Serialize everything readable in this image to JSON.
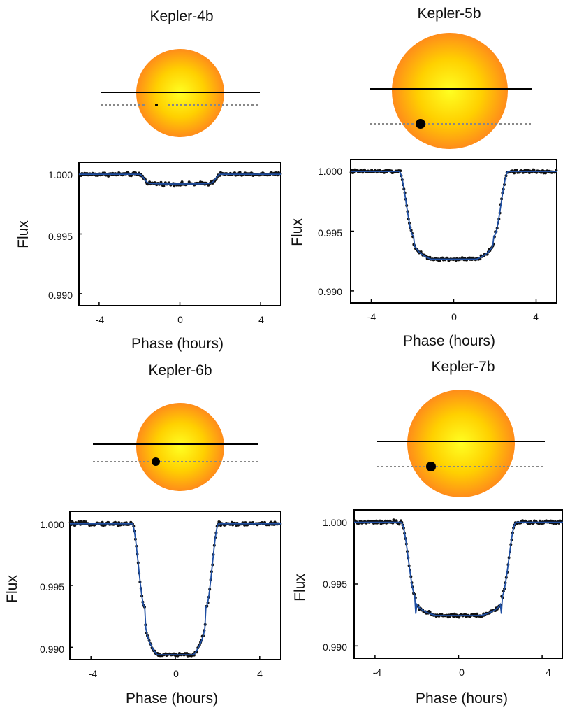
{
  "figure": {
    "colors": {
      "star_center": "#ffff22",
      "star_mid": "#ffcc00",
      "star_edge": "#ff8c1a",
      "model_line": "#1f4fa3",
      "points": "#111111",
      "path_dotted": "#888888"
    }
  },
  "chart_data": [
    {
      "type": "scatter",
      "title": "Kepler-4b",
      "xlabel": "Phase (hours)",
      "ylabel": "Flux",
      "xlim": [
        -5,
        5
      ],
      "ylim": [
        0.989,
        1.001
      ],
      "xticks": [
        -4,
        0,
        4
      ],
      "xtick_labels": [
        "-4",
        "0",
        "4"
      ],
      "yticks": [
        1.0,
        0.995,
        0.99
      ],
      "ytick_labels": [
        "1.000",
        "0.995",
        "0.990"
      ],
      "transit": {
        "depth": 0.0008,
        "t1": 2.0,
        "t2": 1.55,
        "limb_darkening": 0.1
      },
      "series": [
        {
          "kind": "points",
          "scatter": 0.0001
        },
        {
          "kind": "model"
        }
      ],
      "star_diagram": {
        "relative_star_radius": 0.8,
        "relative_planet_radius": 0.02,
        "planet_offset_x": -0.5
      }
    },
    {
      "type": "scatter",
      "title": "Kepler-5b",
      "xlabel": "Phase (hours)",
      "ylabel": "Flux",
      "xlim": [
        -5,
        5
      ],
      "ylim": [
        0.989,
        1.001
      ],
      "xticks": [
        -4,
        0,
        4
      ],
      "xtick_labels": [
        "-4",
        "0",
        "4"
      ],
      "yticks": [
        1.0,
        0.995,
        0.99
      ],
      "ytick_labels": [
        "1.000",
        "0.995",
        "0.990"
      ],
      "transit": {
        "depth": 0.0072,
        "t1": 2.65,
        "t2": 1.95,
        "limb_darkening": 0.25
      },
      "series": [
        {
          "kind": "points",
          "scatter": 0.0001
        },
        {
          "kind": "model"
        }
      ],
      "star_diagram": {
        "relative_star_radius": 1.0,
        "relative_planet_radius": 0.09,
        "planet_offset_x": -0.55
      }
    },
    {
      "type": "scatter",
      "title": "Kepler-6b",
      "xlabel": "Phase (hours)",
      "ylabel": "Flux",
      "xlim": [
        -5,
        5
      ],
      "ylim": [
        0.989,
        1.001
      ],
      "xticks": [
        -4,
        0,
        4
      ],
      "xtick_labels": [
        "-4",
        "0",
        "4"
      ],
      "yticks": [
        1.0,
        0.995,
        0.99
      ],
      "ytick_labels": [
        "1.000",
        "0.995",
        "0.990"
      ],
      "transit": {
        "depth": 0.0104,
        "t1": 2.05,
        "t2": 1.45,
        "limb_darkening": 0.35
      },
      "series": [
        {
          "kind": "points",
          "scatter": 0.0001
        },
        {
          "kind": "model"
        }
      ],
      "star_diagram": {
        "relative_star_radius": 0.8,
        "relative_planet_radius": 0.09,
        "planet_offset_x": -0.5
      }
    },
    {
      "type": "scatter",
      "title": "Kepler-7b",
      "xlabel": "Phase (hours)",
      "ylabel": "Flux",
      "xlim": [
        -5,
        5
      ],
      "ylim": [
        0.989,
        1.001
      ],
      "xticks": [
        -4,
        0,
        4
      ],
      "xtick_labels": [
        "-4",
        "0",
        "4"
      ],
      "yticks": [
        1.0,
        0.995,
        0.99
      ],
      "ytick_labels": [
        "1.000",
        "0.995",
        "0.990"
      ],
      "transit": {
        "depth": 0.0074,
        "t1": 2.75,
        "t2": 2.05,
        "limb_darkening": 0.18
      },
      "series": [
        {
          "kind": "points",
          "scatter": 0.0001
        },
        {
          "kind": "model"
        }
      ],
      "star_diagram": {
        "relative_star_radius": 1.0,
        "relative_planet_radius": 0.09,
        "planet_offset_x": -0.5
      }
    }
  ]
}
